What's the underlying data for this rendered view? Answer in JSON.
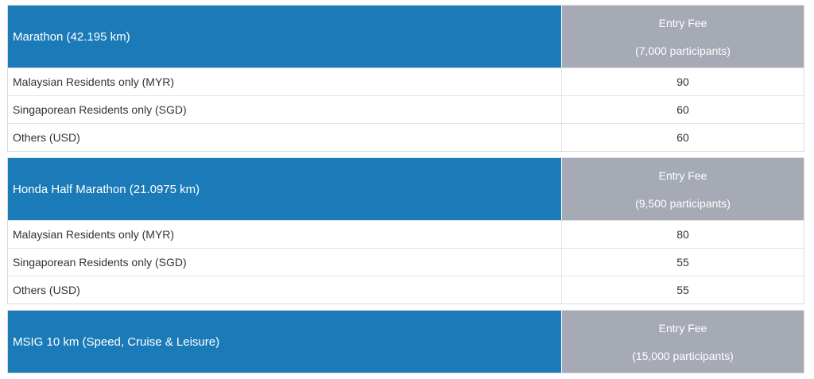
{
  "sections": [
    {
      "title": "Marathon (42.195 km)",
      "fee_title": "Entry Fee",
      "participants": "(7,000 participants)",
      "rows": [
        [
          "Malaysian Residents only (MYR)",
          90
        ],
        [
          "Singaporean Residents only (SGD)",
          60
        ],
        [
          "Others (USD)",
          60
        ]
      ]
    },
    {
      "title": "Honda Half Marathon (21.0975 km)",
      "fee_title": "Entry Fee",
      "participants": "(9,500 participants)",
      "rows": [
        [
          "Malaysian Residents only (MYR)",
          80
        ],
        [
          "Singaporean Residents only (SGD)",
          55
        ],
        [
          "Others (USD)",
          55
        ]
      ]
    },
    {
      "title": "MSIG 10 km (Speed, Cruise & Leisure)",
      "fee_title": "Entry Fee",
      "participants": "(15,000 participants)",
      "rows": []
    }
  ]
}
